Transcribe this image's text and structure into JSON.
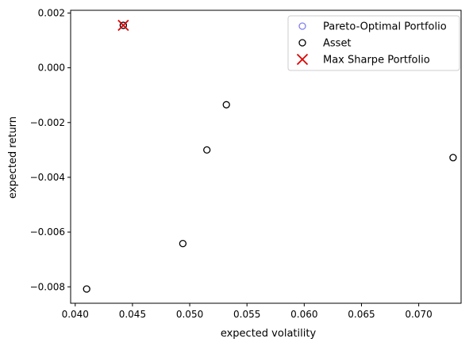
{
  "chart_data": {
    "type": "scatter",
    "title": "",
    "xlabel": "expected volatility",
    "ylabel": "expected return",
    "xlim": [
      0.0396,
      0.0737
    ],
    "ylim": [
      -0.0086,
      0.0021
    ],
    "x_ticks": [
      {
        "value": 0.04,
        "label": "0.040"
      },
      {
        "value": 0.045,
        "label": "0.045"
      },
      {
        "value": 0.05,
        "label": "0.050"
      },
      {
        "value": 0.055,
        "label": "0.055"
      },
      {
        "value": 0.06,
        "label": "0.060"
      },
      {
        "value": 0.065,
        "label": "0.065"
      },
      {
        "value": 0.07,
        "label": "0.070"
      }
    ],
    "y_ticks": [
      {
        "value": 0.002,
        "label": "0.002"
      },
      {
        "value": 0.0,
        "label": "0.000"
      },
      {
        "value": -0.002,
        "label": "−0.002"
      },
      {
        "value": -0.004,
        "label": "−0.004"
      },
      {
        "value": -0.006,
        "label": "−0.006"
      },
      {
        "value": -0.008,
        "label": "−0.008"
      }
    ],
    "grid": false,
    "legend_position": "top-right",
    "series": [
      {
        "name": "Pareto-Optimal Portfolio",
        "marker": "open-circle",
        "color": "#8080ee",
        "points": [
          {
            "x": 0.0442,
            "y": 0.00155
          }
        ]
      },
      {
        "name": "Asset",
        "marker": "open-circle",
        "color": "#000000",
        "points": [
          {
            "x": 0.0442,
            "y": 0.00155
          },
          {
            "x": 0.0532,
            "y": -0.00135
          },
          {
            "x": 0.0515,
            "y": -0.003
          },
          {
            "x": 0.073,
            "y": -0.00328
          },
          {
            "x": 0.0494,
            "y": -0.00642
          },
          {
            "x": 0.041,
            "y": -0.00808
          }
        ]
      },
      {
        "name": "Max Sharpe Portfolio",
        "marker": "x",
        "color": "#dd0000",
        "points": [
          {
            "x": 0.0442,
            "y": 0.00155
          }
        ]
      }
    ]
  }
}
